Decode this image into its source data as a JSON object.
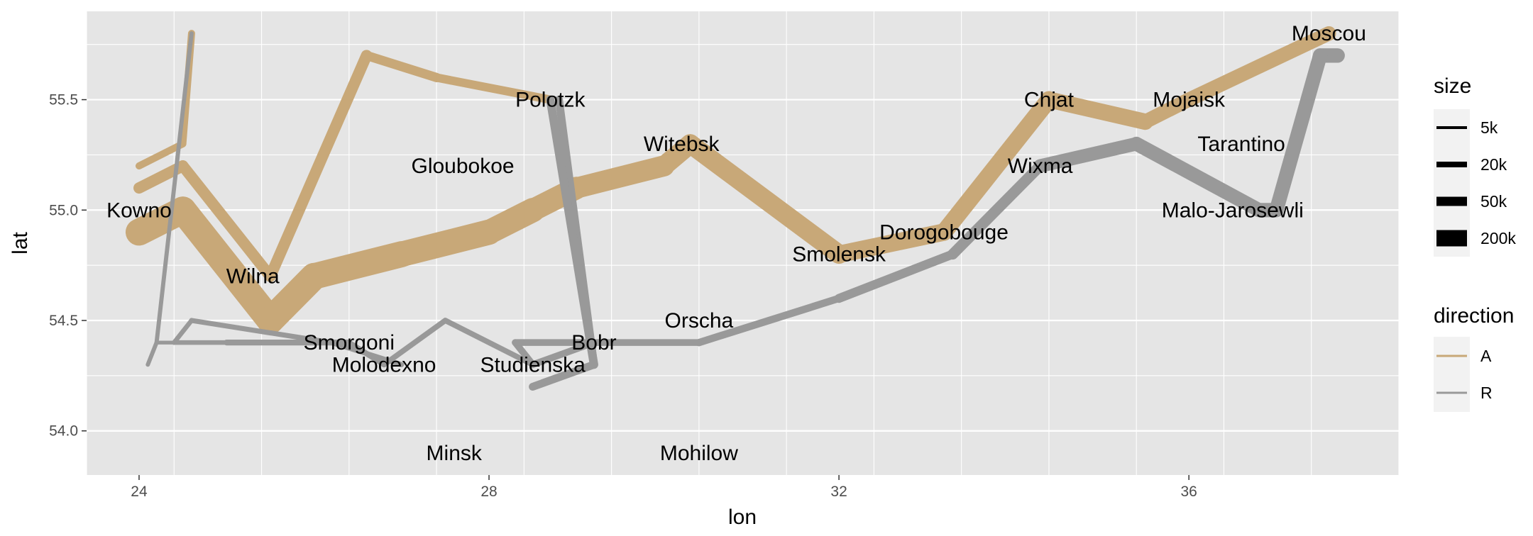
{
  "chart_data": {
    "type": "line",
    "xlabel": "lon",
    "ylabel": "lat",
    "xlim": [
      23.4,
      38.4
    ],
    "ylim": [
      53.8,
      55.9
    ],
    "x_ticks": [
      24,
      28,
      32,
      36
    ],
    "y_ticks": [
      54.0,
      54.5,
      55.0,
      55.5
    ],
    "x_tick_labels": [
      "24",
      "28",
      "32",
      "36"
    ],
    "y_tick_labels": [
      "54.0",
      "54.5",
      "55.0",
      "55.5"
    ],
    "grid": true,
    "legend_position": "right",
    "colors": {
      "A": "#c8a878",
      "R": "#999999",
      "panel": "#e5e5e5",
      "grid": "#ffffff"
    },
    "size_legend": {
      "title": "size",
      "entries": [
        {
          "label": "5k",
          "value": 5000
        },
        {
          "label": "20k",
          "value": 20000
        },
        {
          "label": "50k",
          "value": 50000
        },
        {
          "label": "200k",
          "value": 200000
        }
      ]
    },
    "color_legend": {
      "title": "direction",
      "entries": [
        {
          "label": "A",
          "color": "#c8a878"
        },
        {
          "label": "R",
          "color": "#999999"
        }
      ]
    },
    "troops": [
      {
        "group": 1,
        "direction": "A",
        "points": [
          {
            "lon": 24.0,
            "lat": 54.9,
            "survivors": 340000
          },
          {
            "lon": 24.5,
            "lat": 55.0,
            "survivors": 340000
          },
          {
            "lon": 25.5,
            "lat": 54.5,
            "survivors": 340000
          },
          {
            "lon": 26.0,
            "lat": 54.7,
            "survivors": 320000
          },
          {
            "lon": 27.0,
            "lat": 54.8,
            "survivors": 300000
          },
          {
            "lon": 28.0,
            "lat": 54.9,
            "survivors": 280000
          },
          {
            "lon": 28.5,
            "lat": 55.0,
            "survivors": 240000
          },
          {
            "lon": 29.0,
            "lat": 55.1,
            "survivors": 210000
          },
          {
            "lon": 30.0,
            "lat": 55.2,
            "survivors": 180000
          },
          {
            "lon": 30.3,
            "lat": 55.3,
            "survivors": 175000
          },
          {
            "lon": 32.0,
            "lat": 54.8,
            "survivors": 145000
          },
          {
            "lon": 33.2,
            "lat": 54.9,
            "survivors": 140000
          },
          {
            "lon": 34.4,
            "lat": 55.5,
            "survivors": 127100
          },
          {
            "lon": 35.5,
            "lat": 55.4,
            "survivors": 100000
          },
          {
            "lon": 36.0,
            "lat": 55.5,
            "survivors": 100000
          },
          {
            "lon": 37.6,
            "lat": 55.8,
            "survivors": 100000
          }
        ]
      },
      {
        "group": 1,
        "direction": "R",
        "points": [
          {
            "lon": 37.7,
            "lat": 55.7,
            "survivors": 100000
          },
          {
            "lon": 37.5,
            "lat": 55.7,
            "survivors": 98000
          },
          {
            "lon": 37.0,
            "lat": 55.0,
            "survivors": 97000
          },
          {
            "lon": 36.8,
            "lat": 55.0,
            "survivors": 96000
          },
          {
            "lon": 35.4,
            "lat": 55.3,
            "survivors": 87000
          },
          {
            "lon": 34.3,
            "lat": 55.2,
            "survivors": 55000
          },
          {
            "lon": 33.3,
            "lat": 54.8,
            "survivors": 37000
          },
          {
            "lon": 32.0,
            "lat": 54.6,
            "survivors": 24000
          },
          {
            "lon": 30.4,
            "lat": 54.4,
            "survivors": 20000
          },
          {
            "lon": 29.2,
            "lat": 54.4,
            "survivors": 20000
          },
          {
            "lon": 28.5,
            "lat": 54.3,
            "survivors": 20000
          },
          {
            "lon": 28.3,
            "lat": 54.4,
            "survivors": 20000
          }
        ]
      },
      {
        "group": 1,
        "direction": "R",
        "points": [
          {
            "lon": 28.5,
            "lat": 54.2,
            "survivors": 28000
          },
          {
            "lon": 29.2,
            "lat": 54.3,
            "survivors": 28000
          },
          {
            "lon": 28.8,
            "lat": 55.5,
            "survivors": 30000
          }
        ]
      },
      {
        "group": 1,
        "direction": "R",
        "points": [
          {
            "lon": 28.5,
            "lat": 54.3,
            "survivors": 12000
          },
          {
            "lon": 27.5,
            "lat": 54.5,
            "survivors": 12000
          },
          {
            "lon": 26.8,
            "lat": 54.3,
            "survivors": 12000
          },
          {
            "lon": 26.4,
            "lat": 54.4,
            "survivors": 14000
          },
          {
            "lon": 25.0,
            "lat": 54.4,
            "survivors": 8000
          },
          {
            "lon": 24.4,
            "lat": 54.4,
            "survivors": 4000
          },
          {
            "lon": 24.2,
            "lat": 54.4,
            "survivors": 4000
          },
          {
            "lon": 24.1,
            "lat": 54.3,
            "survivors": 4000
          }
        ]
      },
      {
        "group": 1,
        "direction": "R",
        "points": [
          {
            "lon": 28.3,
            "lat": 54.4,
            "survivors": 20000
          },
          {
            "lon": 29.2,
            "lat": 54.4,
            "survivors": 20000
          }
        ]
      },
      {
        "group": 1,
        "direction": "R",
        "points": [
          {
            "lon": 27.0,
            "lat": 54.3,
            "survivors": 10000
          },
          {
            "lon": 26.2,
            "lat": 54.4,
            "survivors": 10000
          },
          {
            "lon": 24.6,
            "lat": 54.5,
            "survivors": 8000
          },
          {
            "lon": 24.4,
            "lat": 54.4,
            "survivors": 4000
          },
          {
            "lon": 24.2,
            "lat": 54.4,
            "survivors": 4000
          },
          {
            "lon": 24.1,
            "lat": 54.3,
            "survivors": 4000
          }
        ]
      },
      {
        "group": 2,
        "direction": "A",
        "points": [
          {
            "lon": 24.0,
            "lat": 55.1,
            "survivors": 60000
          },
          {
            "lon": 24.5,
            "lat": 55.2,
            "survivors": 60000
          },
          {
            "lon": 25.5,
            "lat": 54.7,
            "survivors": 60000
          },
          {
            "lon": 26.6,
            "lat": 55.7,
            "survivors": 40000
          },
          {
            "lon": 27.4,
            "lat": 55.6,
            "survivors": 33000
          },
          {
            "lon": 28.7,
            "lat": 55.5,
            "survivors": 33000
          }
        ]
      },
      {
        "group": 2,
        "direction": "R",
        "points": [
          {
            "lon": 28.7,
            "lat": 55.5,
            "survivors": 33000
          },
          {
            "lon": 29.2,
            "lat": 54.3,
            "survivors": 30000
          }
        ]
      },
      {
        "group": 3,
        "direction": "A",
        "points": [
          {
            "lon": 24.0,
            "lat": 55.2,
            "survivors": 22000
          },
          {
            "lon": 24.5,
            "lat": 55.3,
            "survivors": 22000
          },
          {
            "lon": 24.6,
            "lat": 55.8,
            "survivors": 6000
          }
        ]
      },
      {
        "group": 3,
        "direction": "R",
        "points": [
          {
            "lon": 24.6,
            "lat": 55.8,
            "survivors": 6000
          },
          {
            "lon": 24.2,
            "lat": 54.4,
            "survivors": 6000
          },
          {
            "lon": 24.1,
            "lat": 54.3,
            "survivors": 6000
          }
        ]
      }
    ],
    "cities": [
      {
        "name": "Kowno",
        "lon": 24.0,
        "lat": 55.0
      },
      {
        "name": "Wilna",
        "lon": 25.3,
        "lat": 54.7
      },
      {
        "name": "Smorgoni",
        "lon": 26.4,
        "lat": 54.4
      },
      {
        "name": "Molodexno",
        "lon": 26.8,
        "lat": 54.3
      },
      {
        "name": "Gloubokoe",
        "lon": 27.7,
        "lat": 55.2
      },
      {
        "name": "Minsk",
        "lon": 27.6,
        "lat": 53.9
      },
      {
        "name": "Studienska",
        "lon": 28.5,
        "lat": 54.3
      },
      {
        "name": "Polotzk",
        "lon": 28.7,
        "lat": 55.5
      },
      {
        "name": "Bobr",
        "lon": 29.2,
        "lat": 54.4
      },
      {
        "name": "Witebsk",
        "lon": 30.2,
        "lat": 55.3
      },
      {
        "name": "Orscha",
        "lon": 30.4,
        "lat": 54.5
      },
      {
        "name": "Mohilow",
        "lon": 30.4,
        "lat": 53.9
      },
      {
        "name": "Smolensk",
        "lon": 32.0,
        "lat": 54.8
      },
      {
        "name": "Dorogobouge",
        "lon": 33.2,
        "lat": 54.9
      },
      {
        "name": "Wixma",
        "lon": 34.3,
        "lat": 55.2
      },
      {
        "name": "Chjat",
        "lon": 34.4,
        "lat": 55.5
      },
      {
        "name": "Mojaisk",
        "lon": 36.0,
        "lat": 55.5
      },
      {
        "name": "Moscou",
        "lon": 37.6,
        "lat": 55.8
      },
      {
        "name": "Tarantino",
        "lon": 36.6,
        "lat": 55.3
      },
      {
        "name": "Malo-Jarosewli",
        "lon": 36.5,
        "lat": 55.0
      }
    ]
  }
}
